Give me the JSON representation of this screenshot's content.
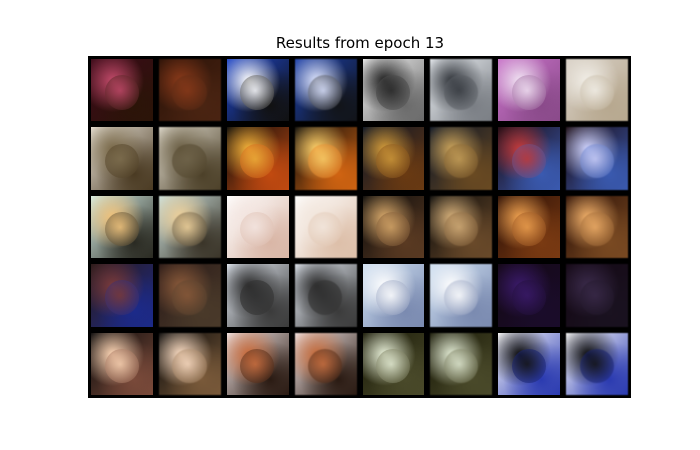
{
  "figure": {
    "title": "Results from epoch 13",
    "grid": {
      "rows": 5,
      "cols": 8,
      "pair_layout": "original | reconstruction"
    },
    "tiles": [
      {
        "bg": "#3a0a18",
        "accent": "#c24a6a",
        "subject": "#2b1408"
      },
      {
        "bg": "#2a1208",
        "accent": "#8a3a1a",
        "subject": "#4a2412"
      },
      {
        "bg": "#1c44c8",
        "accent": "#ffffff",
        "subject": "#111111"
      },
      {
        "bg": "#1a3ea8",
        "accent": "#dfe6ff",
        "subject": "#121418"
      },
      {
        "bg": "#f3f3f3",
        "accent": "#202020",
        "subject": "#6a6a6a"
      },
      {
        "bg": "#eef2f6",
        "accent": "#30343a",
        "subject": "#7a7e84"
      },
      {
        "bg": "#c872c8",
        "accent": "#f1e3f3",
        "subject": "#8a4a8a"
      },
      {
        "bg": "#d8d0c6",
        "accent": "#f2efe8",
        "subject": "#b7a88f"
      },
      {
        "bg": "#e9e3d8",
        "accent": "#7a6a4a",
        "subject": "#4a3a22"
      },
      {
        "bg": "#e2ddd0",
        "accent": "#6c6046",
        "subject": "#4c4028"
      },
      {
        "bg": "#0b0b0b",
        "accent": "#f3b23a",
        "subject": "#c24a10"
      },
      {
        "bg": "#0b0b0b",
        "accent": "#ffd26a",
        "subject": "#d16412"
      },
      {
        "bg": "#0a1426",
        "accent": "#d19a3a",
        "subject": "#6a3a12"
      },
      {
        "bg": "#0a1426",
        "accent": "#c9a25a",
        "subject": "#6a4a22"
      },
      {
        "bg": "#1a0a10",
        "accent": "#c33a3a",
        "subject": "#3a5ab0"
      },
      {
        "bg": "#1a0a10",
        "accent": "#d0d4ff",
        "subject": "#3a5ab0"
      },
      {
        "bg": "#d7efe6",
        "accent": "#f2c37a",
        "subject": "#2a2a22"
      },
      {
        "bg": "#cfe3df",
        "accent": "#f1d29a",
        "subject": "#3a3428"
      },
      {
        "bg": "#ffffff",
        "accent": "#f3e5e0",
        "subject": "#d9b6a6"
      },
      {
        "bg": "#ffffff",
        "accent": "#f2e6dc",
        "subject": "#ddbfa9"
      },
      {
        "bg": "#0b0b0b",
        "accent": "#d7a86a",
        "subject": "#5a3a22"
      },
      {
        "bg": "#0b0b0b",
        "accent": "#d6b07a",
        "subject": "#6a4a2a"
      },
      {
        "bg": "#2a0f06",
        "accent": "#f0a250",
        "subject": "#7a3a12"
      },
      {
        "bg": "#2a0f06",
        "accent": "#f2b16a",
        "subject": "#7a4a22"
      },
      {
        "bg": "#2a1a18",
        "accent": "#7a3a3a",
        "subject": "#1c2a8a"
      },
      {
        "bg": "#2a1a18",
        "accent": "#8a5a3a",
        "subject": "#4a3a2a"
      },
      {
        "bg": "#e6ecf5",
        "accent": "#2a2a2a",
        "subject": "#3a3a3a"
      },
      {
        "bg": "#e6ecf5",
        "accent": "#2a2a2a",
        "subject": "#3a3a3a"
      },
      {
        "bg": "#cfe0f2",
        "accent": "#ffffff",
        "subject": "#7a8ab0"
      },
      {
        "bg": "#cfe0f2",
        "accent": "#ffffff",
        "subject": "#7a8ab0"
      },
      {
        "bg": "#140814",
        "accent": "#3a1a6a",
        "subject": "#1a0c2a"
      },
      {
        "bg": "#140814",
        "accent": "#3a2a4a",
        "subject": "#1a1220"
      },
      {
        "bg": "#0b0b0b",
        "accent": "#ffd7b6",
        "subject": "#7a4a3a"
      },
      {
        "bg": "#0b0b0b",
        "accent": "#ffe0c6",
        "subject": "#7a5a3a"
      },
      {
        "bg": "#f2e6e6",
        "accent": "#c86a3a",
        "subject": "#2a1a12"
      },
      {
        "bg": "#f2e6e6",
        "accent": "#c56a3a",
        "subject": "#2a1a12"
      },
      {
        "bg": "#1a1a08",
        "accent": "#e9f1d9",
        "subject": "#4a4a2a"
      },
      {
        "bg": "#1a1a08",
        "accent": "#e4edd6",
        "subject": "#4a4a2a"
      },
      {
        "bg": "#ffffff",
        "accent": "#0b0b0b",
        "subject": "#2a3ab0"
      },
      {
        "bg": "#ffffff",
        "accent": "#0b0b0b",
        "subject": "#2a3ab0"
      }
    ]
  }
}
